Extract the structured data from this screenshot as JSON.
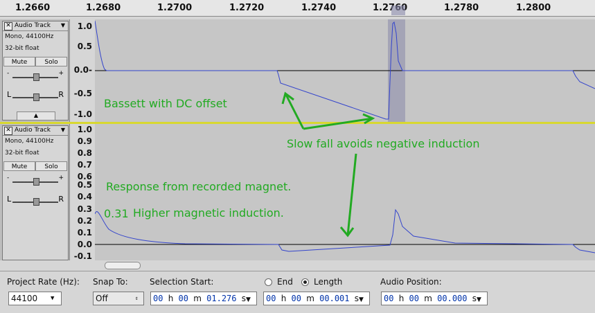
{
  "ruler": {
    "ticks": [
      "1.2660",
      "1.2680",
      "1.2700",
      "1.2720",
      "1.2740",
      "1.2760",
      "1.2780",
      "1.2800"
    ]
  },
  "tracks": [
    {
      "name": "Audio Track",
      "format": "Mono, 44100Hz",
      "depth": "32-bit float",
      "mute": "Mute",
      "solo": "Solo",
      "vticks": [
        "1.0",
        "0.5",
        "0.0-",
        "-0.5",
        "-1.0"
      ],
      "gain_minus": "-",
      "gain_plus": "+",
      "pan_l": "L",
      "pan_r": "R"
    },
    {
      "name": "Audio Track",
      "format": "Mono, 44100Hz",
      "depth": "32-bit float",
      "mute": "Mute",
      "solo": "Solo",
      "vticks": [
        "1.0",
        "0.9",
        "0.8",
        "0.7",
        "0.6",
        "0.5",
        "0.4",
        "0.3",
        "0.2",
        "0.1",
        "0.0",
        "-0.1"
      ],
      "gain_minus": "-",
      "gain_plus": "+",
      "pan_l": "L",
      "pan_r": "R"
    }
  ],
  "annotations": {
    "bassett": "Bassett with DC offset",
    "slow_fall": "Slow fall avoids negative induction",
    "response": "Response from recorded magnet.",
    "value": "0.31",
    "higher": "Higher magnetic induction."
  },
  "toolbar": {
    "project_rate_label": "Project Rate (Hz):",
    "project_rate": "44100",
    "snap_label": "Snap To:",
    "snap_value": "Off",
    "sel_start_label": "Selection Start:",
    "end_label": "End",
    "length_label": "Length",
    "length_selected": true,
    "audio_pos_label": "Audio Position:",
    "sel_start": {
      "h": "00",
      "m": "00",
      "s": "01.276"
    },
    "sel_length": {
      "h": "00",
      "m": "00",
      "s": "00.001"
    },
    "audio_pos": {
      "h": "00",
      "m": "00",
      "s": "00.000"
    },
    "unit_h": "h",
    "unit_m": "m",
    "unit_s": "s"
  },
  "colors": {
    "wave": "#3344cc",
    "annotation": "#22aa22",
    "selection": "#8888aa"
  }
}
